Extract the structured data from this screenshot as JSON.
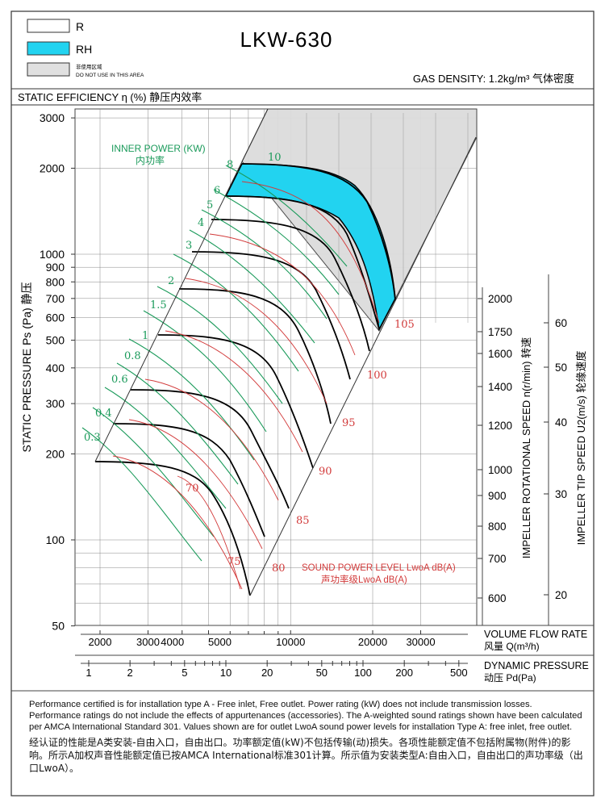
{
  "header": {
    "title": "LKW-630",
    "legend": [
      {
        "label": "R",
        "color": "#ffffff"
      },
      {
        "label": "RH",
        "color": "#22d3f0"
      },
      {
        "label": "非使用区域",
        "label2": "DO NOT USE IN THIS AREA",
        "color": "#e0e0e0"
      }
    ],
    "gas_density": "GAS DENSITY: 1.2kg/m³  气体密度"
  },
  "chart_data": {
    "type": "line",
    "title": "STATIC EFFICIENCY η (%) 静压内效率",
    "ylabel": "STATIC PRESSURE Ps (Pa) 静压",
    "yscale": "log",
    "ylim": [
      50,
      3500
    ],
    "yticks": [
      3000,
      2000,
      1000,
      900,
      800,
      700,
      600,
      500,
      400,
      300,
      200,
      100,
      50
    ],
    "xlabel": "VOLUME FLOW RATE",
    "xlabel_cn": "风量 Q(m³/h)",
    "xticks": [
      "2000",
      "3000",
      "4000",
      "5000",
      "10000",
      "20000",
      "30000"
    ],
    "xlabel2": "DYNAMIC PRESSURE",
    "xlabel2_cn": "动压 Pd(Pa)",
    "x2ticks": [
      "1",
      "2",
      "5",
      "10",
      "20",
      "50",
      "100",
      "200",
      "500"
    ],
    "speed_axis": {
      "label": "IMPELLER ROTATIONAL SPEED n(r/min) 转速",
      "ticks": [
        "2000",
        "1750",
        "1600",
        "1400",
        "1200",
        "1000",
        "900",
        "800",
        "700",
        "600"
      ]
    },
    "tip_speed_axis": {
      "label": "IMPELLER TIP SPEED U2(m/s) 轮缘速度",
      "ticks": [
        "60",
        "50",
        "40",
        "30",
        "20"
      ]
    },
    "inner_power": {
      "label": "INNER POWER (KW)",
      "label_cn": "内功率",
      "values": [
        "10",
        "8",
        "6",
        "5",
        "4",
        "3",
        "2",
        "1.5",
        "1",
        "0.8",
        "0.6",
        "0.4",
        "0.3"
      ]
    },
    "sound_power": {
      "label": "SOUND POWER LEVEL LwoA dB(A)",
      "label_cn": "声功率级LwoA dB(A)",
      "values": [
        "105",
        "100",
        "95",
        "90",
        "85",
        "80",
        "75",
        "70"
      ]
    },
    "speed_curves_rpm": [
      2000,
      1750,
      1600,
      1400,
      1200,
      1000,
      900,
      800,
      700,
      600
    ],
    "grid": true,
    "series_colors": {
      "pressure": "#000000",
      "power": "#1a9a5a",
      "sound": "#d23a3a",
      "rh": "#22d3f0",
      "noarea": "#dcdcdc"
    }
  },
  "notes": {
    "en": "Performance certified is for installation type A - Free inlet, Free outlet. Power rating (kW) does not include transmission losses. Performance ratings do not include the effects of appurtenances (accessories). The A-weighted sound ratings shown have been calculated per AMCA International Standard 301. Values shown are for outlet LwoA sound power levels for installation Type A: free inlet, free outlet.",
    "cn": "经认证的性能是A类安装-自由入口，自由出口。功率额定值(kW)不包括传输(动)损失。各项性能额定值不包括附属物(附件)的影响。所示A加权声音性能额定值已按AMCA International标准301计算。所示值为安装类型A:自由入口，自由出口的声功率级（出口LwoA）。"
  }
}
